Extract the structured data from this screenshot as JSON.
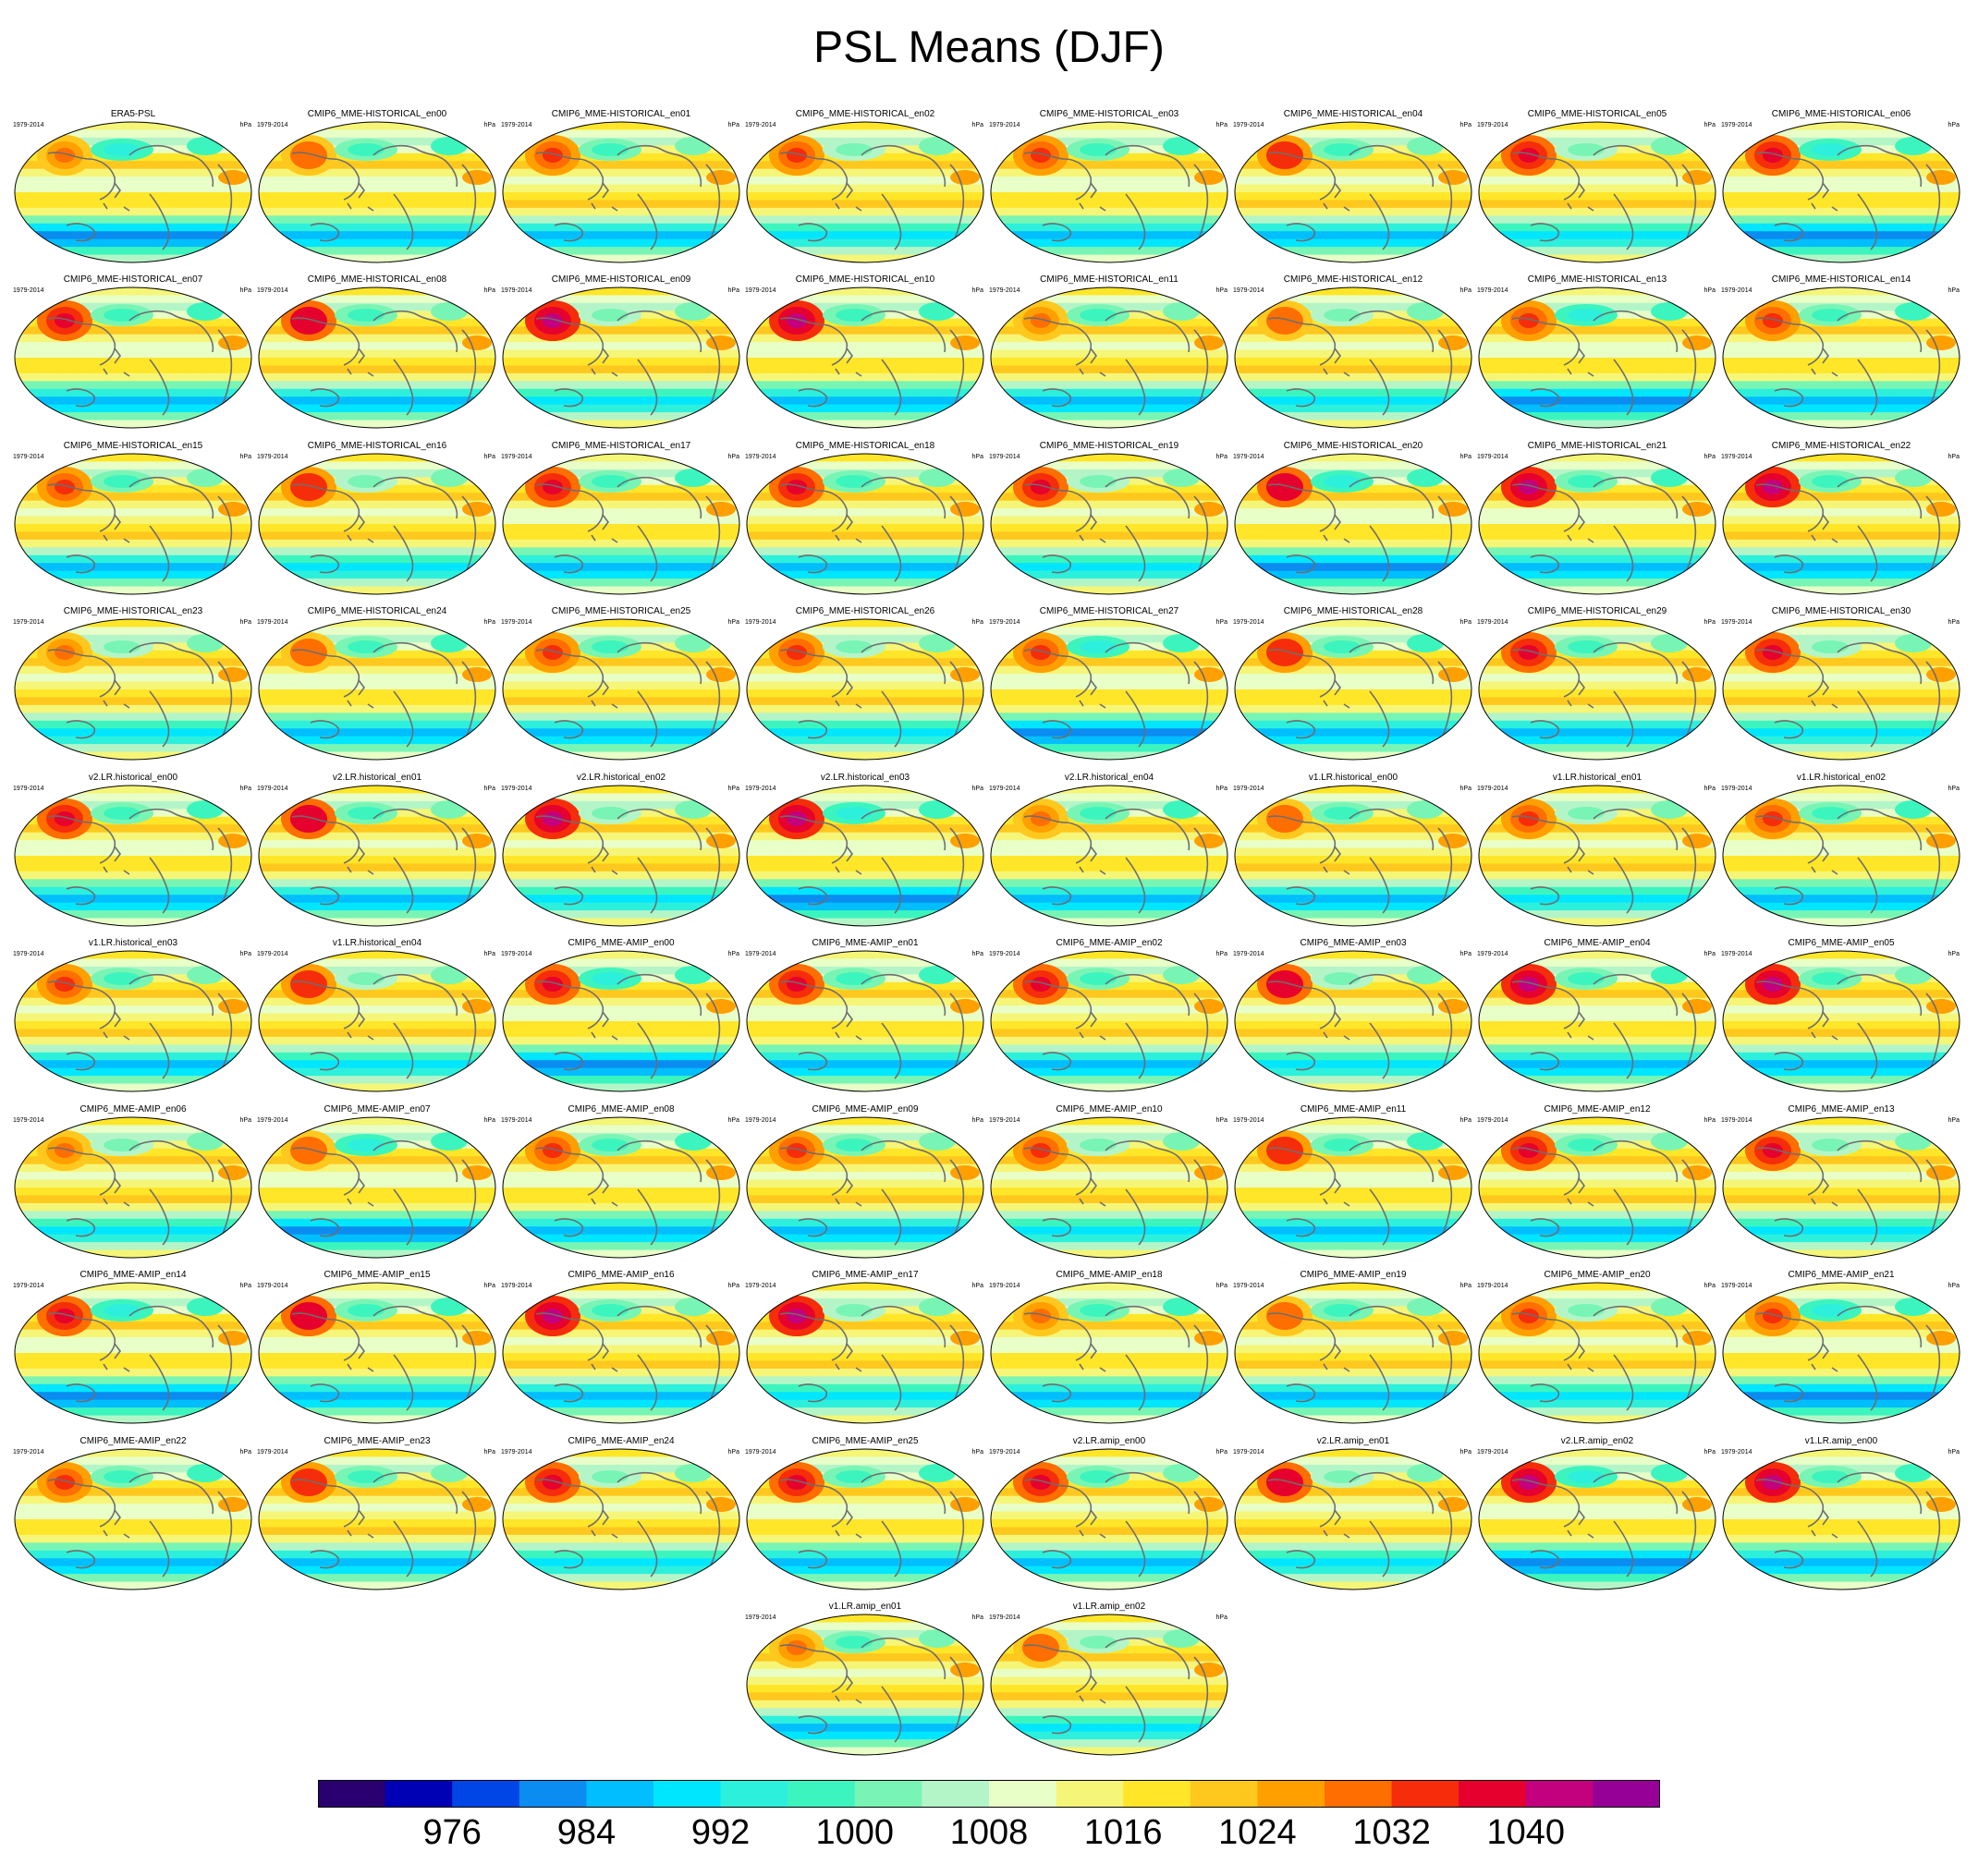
{
  "title": "PSL Means (DJF)",
  "panel_date_label": "1979-2014",
  "panel_unit_label": "hPa",
  "chart_data": {
    "type": "heatmap",
    "title": "PSL Means (DJF)",
    "variable": "PSL",
    "season": "DJF",
    "period": "1979-2014",
    "units": "hPa",
    "projection": "Robinson (global, Pacific-centered)",
    "panels": [
      {
        "name": "ERA5-PSL"
      },
      {
        "name": "CMIP6_MME-HISTORICAL_en00"
      },
      {
        "name": "CMIP6_MME-HISTORICAL_en01"
      },
      {
        "name": "CMIP6_MME-HISTORICAL_en02"
      },
      {
        "name": "CMIP6_MME-HISTORICAL_en03"
      },
      {
        "name": "CMIP6_MME-HISTORICAL_en04"
      },
      {
        "name": "CMIP6_MME-HISTORICAL_en05"
      },
      {
        "name": "CMIP6_MME-HISTORICAL_en06"
      },
      {
        "name": "CMIP6_MME-HISTORICAL_en07"
      },
      {
        "name": "CMIP6_MME-HISTORICAL_en08"
      },
      {
        "name": "CMIP6_MME-HISTORICAL_en09"
      },
      {
        "name": "CMIP6_MME-HISTORICAL_en10"
      },
      {
        "name": "CMIP6_MME-HISTORICAL_en11"
      },
      {
        "name": "CMIP6_MME-HISTORICAL_en12"
      },
      {
        "name": "CMIP6_MME-HISTORICAL_en13"
      },
      {
        "name": "CMIP6_MME-HISTORICAL_en14"
      },
      {
        "name": "CMIP6_MME-HISTORICAL_en15"
      },
      {
        "name": "CMIP6_MME-HISTORICAL_en16"
      },
      {
        "name": "CMIP6_MME-HISTORICAL_en17"
      },
      {
        "name": "CMIP6_MME-HISTORICAL_en18"
      },
      {
        "name": "CMIP6_MME-HISTORICAL_en19"
      },
      {
        "name": "CMIP6_MME-HISTORICAL_en20"
      },
      {
        "name": "CMIP6_MME-HISTORICAL_en21"
      },
      {
        "name": "CMIP6_MME-HISTORICAL_en22"
      },
      {
        "name": "CMIP6_MME-HISTORICAL_en23"
      },
      {
        "name": "CMIP6_MME-HISTORICAL_en24"
      },
      {
        "name": "CMIP6_MME-HISTORICAL_en25"
      },
      {
        "name": "CMIP6_MME-HISTORICAL_en26"
      },
      {
        "name": "CMIP6_MME-HISTORICAL_en27"
      },
      {
        "name": "CMIP6_MME-HISTORICAL_en28"
      },
      {
        "name": "CMIP6_MME-HISTORICAL_en29"
      },
      {
        "name": "CMIP6_MME-HISTORICAL_en30"
      },
      {
        "name": "v2.LR.historical_en00"
      },
      {
        "name": "v2.LR.historical_en01"
      },
      {
        "name": "v2.LR.historical_en02"
      },
      {
        "name": "v2.LR.historical_en03"
      },
      {
        "name": "v2.LR.historical_en04"
      },
      {
        "name": "v1.LR.historical_en00"
      },
      {
        "name": "v1.LR.historical_en01"
      },
      {
        "name": "v1.LR.historical_en02"
      },
      {
        "name": "v1.LR.historical_en03"
      },
      {
        "name": "v1.LR.historical_en04"
      },
      {
        "name": "CMIP6_MME-AMIP_en00"
      },
      {
        "name": "CMIP6_MME-AMIP_en01"
      },
      {
        "name": "CMIP6_MME-AMIP_en02"
      },
      {
        "name": "CMIP6_MME-AMIP_en03"
      },
      {
        "name": "CMIP6_MME-AMIP_en04"
      },
      {
        "name": "CMIP6_MME-AMIP_en05"
      },
      {
        "name": "CMIP6_MME-AMIP_en06"
      },
      {
        "name": "CMIP6_MME-AMIP_en07"
      },
      {
        "name": "CMIP6_MME-AMIP_en08"
      },
      {
        "name": "CMIP6_MME-AMIP_en09"
      },
      {
        "name": "CMIP6_MME-AMIP_en10"
      },
      {
        "name": "CMIP6_MME-AMIP_en11"
      },
      {
        "name": "CMIP6_MME-AMIP_en12"
      },
      {
        "name": "CMIP6_MME-AMIP_en13"
      },
      {
        "name": "CMIP6_MME-AMIP_en14"
      },
      {
        "name": "CMIP6_MME-AMIP_en15"
      },
      {
        "name": "CMIP6_MME-AMIP_en16"
      },
      {
        "name": "CMIP6_MME-AMIP_en17"
      },
      {
        "name": "CMIP6_MME-AMIP_en18"
      },
      {
        "name": "CMIP6_MME-AMIP_en19"
      },
      {
        "name": "CMIP6_MME-AMIP_en20"
      },
      {
        "name": "CMIP6_MME-AMIP_en21"
      },
      {
        "name": "CMIP6_MME-AMIP_en22"
      },
      {
        "name": "CMIP6_MME-AMIP_en23"
      },
      {
        "name": "CMIP6_MME-AMIP_en24"
      },
      {
        "name": "CMIP6_MME-AMIP_en25"
      },
      {
        "name": "v2.LR.amip_en00"
      },
      {
        "name": "v2.LR.amip_en01"
      },
      {
        "name": "v2.LR.amip_en02"
      },
      {
        "name": "v1.LR.amip_en00"
      },
      {
        "name": "v1.LR.amip_en01"
      },
      {
        "name": "v1.LR.amip_en02"
      }
    ],
    "colorbar": {
      "levels": [
        972,
        976,
        980,
        984,
        988,
        992,
        996,
        1000,
        1004,
        1008,
        1012,
        1016,
        1020,
        1024,
        1028,
        1032,
        1036,
        1040,
        1044
      ],
      "tick_labels": [
        "976",
        "984",
        "992",
        "1000",
        "1008",
        "1016",
        "1024",
        "1032",
        "1040"
      ],
      "colors": [
        "#2a0070",
        "#0000b4",
        "#0046e6",
        "#0a8cf0",
        "#00beff",
        "#00e6ff",
        "#2df0dc",
        "#3cf5be",
        "#78f5b4",
        "#b4f5c8",
        "#e8ffc8",
        "#f5f578",
        "#ffe628",
        "#ffc81e",
        "#ffa000",
        "#ff6e00",
        "#f52d0a",
        "#e6002d",
        "#c3007d",
        "#960096"
      ]
    }
  }
}
